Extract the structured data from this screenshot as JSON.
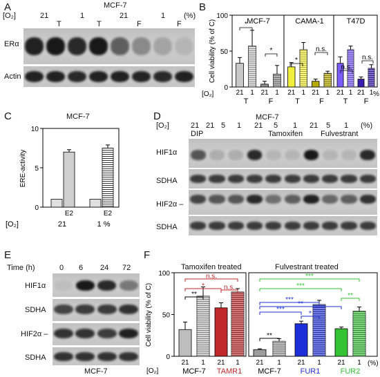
{
  "panels": {
    "A": {
      "letter": "A",
      "title": "MCF-7",
      "o2_label": "[O₂]",
      "o2_values": [
        "21",
        "1",
        "21",
        "1"
      ],
      "unit": "(%)",
      "treatments": [
        "T",
        "T",
        "F",
        "F"
      ],
      "rows": [
        "ERα",
        "Actin"
      ],
      "era_intensity": [
        0.9,
        0.95,
        0.85,
        0.95,
        0.55,
        0.3,
        0.15,
        0.05
      ],
      "actin_intensity": [
        0.9,
        0.9,
        0.85,
        0.9,
        0.9,
        0.88,
        0.85,
        0.9
      ]
    },
    "B": {
      "letter": "B",
      "ylabel": "Cell viability (% of C)",
      "xlabel_o2": "[O₂]",
      "unit": "%",
      "sig_labels": [
        "*",
        "*",
        "*",
        "n.s.",
        "n.s.",
        "n.s."
      ]
    },
    "C": {
      "letter": "C",
      "title": "MCF-7",
      "ylabel": "ERE-activity",
      "xlabel_o2": "[O₂]",
      "groups": [
        "21",
        "1 %"
      ],
      "bar_label": "E2"
    },
    "D": {
      "letter": "D",
      "title": "MCF-7",
      "o2_label": "[O₂]",
      "o2_values": [
        "21",
        "21",
        "5",
        "1",
        "21",
        "5",
        "1",
        "21",
        "5",
        "1"
      ],
      "unit": "(%)",
      "groups": [
        "DIP",
        "Tamoxifen",
        "Fulvestrant"
      ],
      "rows": [
        "HIF1α",
        "SDHA",
        "HIF2α",
        "SDHA"
      ]
    },
    "E": {
      "letter": "E",
      "time_label": "Time (h)",
      "times": [
        "0",
        "6",
        "24",
        "72"
      ],
      "rows": [
        "HIF1α",
        "SDHA",
        "HIF2α",
        "SDHA"
      ],
      "cell_line": "MCF-7"
    },
    "F": {
      "letter": "F",
      "ylabel": "Cell viability (% of C)",
      "xlabel_o2": "[O₂]",
      "unit": "(%)",
      "left_title": "Tamoxifen treated",
      "right_title": "Fulvestrant treated",
      "cell_lines_left": [
        "MCF-7",
        "TAMR1"
      ],
      "cell_lines_right": [
        "MCF-7",
        "FUR1",
        "FUR2"
      ],
      "sig_left": [
        "**",
        "*",
        "n.s.",
        "n.s."
      ],
      "sig_right": [
        "**",
        "***",
        "**",
        "***",
        "*",
        "***",
        "**"
      ]
    }
  },
  "chart_data": [
    {
      "type": "bar",
      "panel": "B",
      "subtitle": "MCF-7",
      "categories": [
        "21 T",
        "1 T",
        "21 F",
        "1 F"
      ],
      "values": [
        33,
        57,
        4,
        18
      ],
      "errors": [
        8,
        22,
        4,
        12
      ],
      "ylim": [
        0,
        100
      ],
      "yticks": [
        0,
        50,
        100
      ],
      "colors": [
        "#c8c8c8",
        "#c8c8c8",
        "#8c8c8c",
        "#8c8c8c"
      ]
    },
    {
      "type": "bar",
      "panel": "B",
      "subtitle": "CAMA-1",
      "categories": [
        "21 T",
        "1 T",
        "21 F",
        "1 F"
      ],
      "values": [
        28,
        52,
        8,
        19
      ],
      "errors": [
        6,
        10,
        3,
        3
      ],
      "ylim": [
        0,
        100
      ],
      "colors": [
        "#f2ef3c",
        "#f2ef3c",
        "#b5a900",
        "#b5a900"
      ]
    },
    {
      "type": "bar",
      "panel": "B",
      "subtitle": "T47D",
      "categories": [
        "21 T",
        "1 T",
        "21 F",
        "1 F"
      ],
      "values": [
        33,
        52,
        11,
        26
      ],
      "errors": [
        9,
        5,
        3,
        5
      ],
      "ylim": [
        0,
        100
      ],
      "colors": [
        "#7a5cff",
        "#7a5cff",
        "#3a1fb0",
        "#3a1fb0"
      ]
    },
    {
      "type": "bar",
      "panel": "C",
      "categories": [
        "21",
        "21 E2",
        "1",
        "1 E2"
      ],
      "values": [
        1,
        7,
        1,
        7.5
      ],
      "errors": [
        0,
        0.3,
        0,
        0.4
      ],
      "ylim": [
        0,
        10
      ],
      "yticks": [
        0,
        5,
        10
      ]
    },
    {
      "type": "bar",
      "panel": "F",
      "subtitle": "Tamoxifen treated",
      "categories": [
        "MCF-7 21",
        "MCF-7 1",
        "TAMR1 21",
        "TAMR1 1"
      ],
      "values": [
        32,
        72,
        58,
        77
      ],
      "errors": [
        9,
        11,
        6,
        4
      ],
      "ylim": [
        0,
        100
      ],
      "yticks": [
        0,
        50,
        100
      ],
      "colors": [
        "#bdbdbd",
        "#bdbdbd",
        "#c0282a",
        "#c0282a"
      ]
    },
    {
      "type": "bar",
      "panel": "F",
      "subtitle": "Fulvestrant treated",
      "categories": [
        "MCF-7 21",
        "MCF-7 1",
        "FUR1 21",
        "FUR1 1",
        "FUR2 21",
        "FUR2 1"
      ],
      "values": [
        8,
        18,
        39,
        62,
        33,
        54
      ],
      "errors": [
        1,
        3,
        3,
        5,
        2,
        5
      ],
      "ylim": [
        0,
        100
      ],
      "colors": [
        "#9e9e9e",
        "#9e9e9e",
        "#1f2fd8",
        "#1f2fd8",
        "#33c233",
        "#33c233"
      ]
    }
  ]
}
